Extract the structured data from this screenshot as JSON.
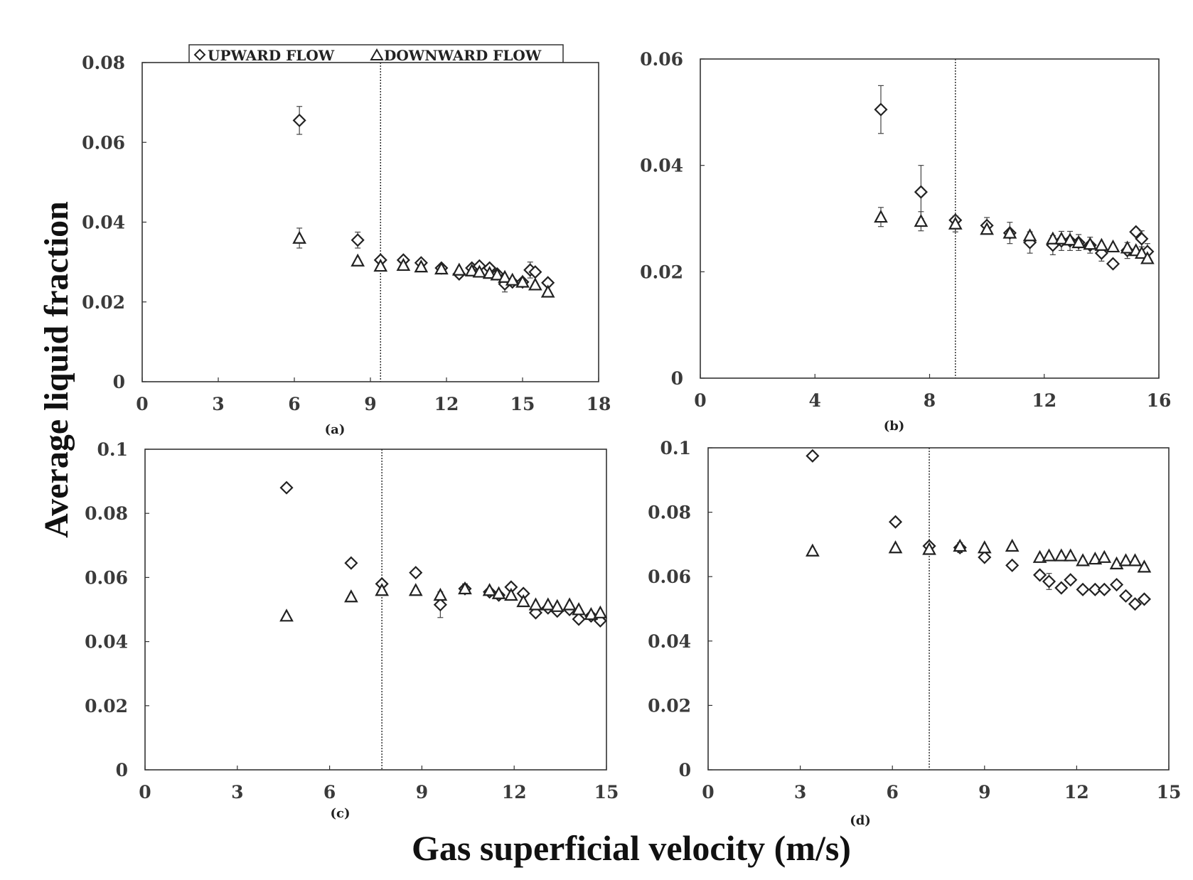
{
  "figure": {
    "ylabel": "Average liquid fraction",
    "xlabel": "Gas superficial velocity (m/s)",
    "colors": {
      "marker": "#222222",
      "axis": "#333333",
      "text": "#3a3a3a"
    }
  },
  "legend": {
    "upward_label": "UPWARD FLOW",
    "downward_label": "DOWNWARD FLOW"
  },
  "chart_data": [
    {
      "type": "scatter",
      "panel": "(a)",
      "xlim": [
        0,
        18
      ],
      "ylim": [
        0,
        0.08
      ],
      "xticks": [
        "0",
        "3",
        "6",
        "9",
        "12",
        "15",
        "18"
      ],
      "xtick_values": [
        0,
        3,
        6,
        9,
        12,
        15,
        18
      ],
      "yticks": [
        "0",
        "0.02",
        "0.04",
        "0.06",
        "0.08"
      ],
      "ytick_values": [
        0,
        0.02,
        0.04,
        0.06,
        0.08
      ],
      "vline": 9.4,
      "series": [
        {
          "name": "UPWARD FLOW",
          "marker": "diamond",
          "x": [
            6.2,
            8.5,
            9.4,
            10.3,
            11.0,
            11.8,
            12.5,
            13.0,
            13.3,
            13.7,
            14.0,
            14.3,
            14.6,
            15.0,
            15.3,
            15.5,
            16.0
          ],
          "y": [
            0.0655,
            0.0355,
            0.0305,
            0.0305,
            0.0298,
            0.0285,
            0.027,
            0.0285,
            0.029,
            0.0285,
            0.027,
            0.0245,
            0.025,
            0.025,
            0.028,
            0.0275,
            0.0248
          ],
          "err": [
            0.0035,
            0.002,
            0,
            0,
            0,
            0,
            0,
            0,
            0,
            0,
            0,
            0.002,
            0,
            0,
            0.002,
            0,
            0
          ]
        },
        {
          "name": "DOWNWARD FLOW",
          "marker": "triangle",
          "x": [
            6.2,
            8.5,
            9.4,
            10.3,
            11.0,
            11.8,
            12.5,
            13.0,
            13.3,
            13.7,
            14.0,
            14.3,
            14.6,
            15.0,
            15.5,
            16.0
          ],
          "y": [
            0.036,
            0.0303,
            0.029,
            0.0292,
            0.0288,
            0.0283,
            0.028,
            0.0278,
            0.0275,
            0.0272,
            0.0268,
            0.0262,
            0.0255,
            0.025,
            0.0243,
            0.0225
          ],
          "err": [
            0.0025,
            0,
            0,
            0,
            0,
            0,
            0,
            0,
            0,
            0,
            0,
            0,
            0,
            0,
            0,
            0
          ]
        }
      ]
    },
    {
      "type": "scatter",
      "panel": "(b)",
      "xlim": [
        0,
        16
      ],
      "ylim": [
        0,
        0.06
      ],
      "xticks": [
        "0",
        "4",
        "8",
        "12",
        "16"
      ],
      "xtick_values": [
        0,
        4,
        8,
        12,
        16
      ],
      "yticks": [
        "0",
        "0.02",
        "0.04",
        "0.06"
      ],
      "ytick_values": [
        0,
        0.02,
        0.04,
        0.06
      ],
      "vline": 8.9,
      "series": [
        {
          "name": "UPWARD FLOW",
          "marker": "diamond",
          "x": [
            6.3,
            7.7,
            8.9,
            10.0,
            10.8,
            11.5,
            12.3,
            12.6,
            12.9,
            13.2,
            13.6,
            14.0,
            14.4,
            14.9,
            15.2,
            15.4,
            15.6
          ],
          "y": [
            0.0505,
            0.035,
            0.0297,
            0.0287,
            0.0273,
            0.0255,
            0.025,
            0.0258,
            0.0258,
            0.0255,
            0.025,
            0.0235,
            0.0215,
            0.024,
            0.0275,
            0.0262,
            0.0238
          ],
          "err": [
            0.0045,
            0.005,
            0,
            0.0015,
            0.002,
            0.002,
            0.0018,
            0.0018,
            0.0018,
            0.0015,
            0.0015,
            0.0015,
            0,
            0.0015,
            0,
            0.0015,
            0.0015
          ]
        },
        {
          "name": "DOWNWARD FLOW",
          "marker": "triangle",
          "x": [
            6.3,
            7.7,
            8.9,
            10.0,
            10.8,
            11.5,
            12.3,
            12.6,
            12.9,
            13.2,
            13.6,
            14.0,
            14.4,
            14.9,
            15.2,
            15.4,
            15.6
          ],
          "y": [
            0.0303,
            0.0295,
            0.029,
            0.028,
            0.0273,
            0.0268,
            0.0262,
            0.0262,
            0.026,
            0.0255,
            0.0252,
            0.025,
            0.0247,
            0.0245,
            0.024,
            0.0235,
            0.0225
          ],
          "err": [
            0.0018,
            0.0018,
            0.0015,
            0,
            0,
            0,
            0,
            0,
            0,
            0,
            0,
            0,
            0,
            0,
            0,
            0,
            0
          ]
        }
      ]
    },
    {
      "type": "scatter",
      "panel": "(c)",
      "xlim": [
        0,
        15
      ],
      "ylim": [
        0,
        0.1
      ],
      "xticks": [
        "0",
        "3",
        "6",
        "9",
        "12",
        "15"
      ],
      "xtick_values": [
        0,
        3,
        6,
        9,
        12,
        15
      ],
      "yticks": [
        "0",
        "0.02",
        "0.04",
        "0.06",
        "0.08",
        "0.1"
      ],
      "ytick_values": [
        0,
        0.02,
        0.04,
        0.06,
        0.08,
        0.1
      ],
      "vline": 7.7,
      "series": [
        {
          "name": "UPWARD FLOW",
          "marker": "diamond",
          "x": [
            4.6,
            6.7,
            7.7,
            8.8,
            9.6,
            10.4,
            11.2,
            11.5,
            11.9,
            12.3,
            12.7,
            13.1,
            13.4,
            13.8,
            14.1,
            14.5,
            14.8
          ],
          "y": [
            0.088,
            0.0645,
            0.058,
            0.0615,
            0.0515,
            0.0565,
            0.0555,
            0.0545,
            0.057,
            0.055,
            0.049,
            0.0505,
            0.0495,
            0.05,
            0.047,
            0.048,
            0.0465
          ],
          "err": [
            0,
            0,
            0,
            0,
            0.004,
            0.0015,
            0,
            0,
            0,
            0,
            0,
            0,
            0,
            0,
            0,
            0,
            0
          ]
        },
        {
          "name": "DOWNWARD FLOW",
          "marker": "triangle",
          "x": [
            4.6,
            6.7,
            7.7,
            8.8,
            9.6,
            10.4,
            11.2,
            11.5,
            11.9,
            12.3,
            12.7,
            13.1,
            13.4,
            13.8,
            14.1,
            14.5,
            14.8
          ],
          "y": [
            0.048,
            0.054,
            0.056,
            0.056,
            0.0545,
            0.0565,
            0.056,
            0.055,
            0.0545,
            0.0525,
            0.0515,
            0.0515,
            0.051,
            0.0515,
            0.05,
            0.0485,
            0.049
          ],
          "err": [
            0,
            0,
            0,
            0,
            0,
            0,
            0,
            0,
            0,
            0,
            0,
            0,
            0,
            0,
            0,
            0,
            0
          ]
        }
      ]
    },
    {
      "type": "scatter",
      "panel": "(d)",
      "xlim": [
        0,
        15
      ],
      "ylim": [
        0,
        0.1
      ],
      "xticks": [
        "0",
        "3",
        "6",
        "9",
        "12",
        "15"
      ],
      "xtick_values": [
        0,
        3,
        6,
        9,
        12,
        15
      ],
      "yticks": [
        "0",
        "0.02",
        "0.04",
        "0.06",
        "0.08",
        "0.1"
      ],
      "ytick_values": [
        0,
        0.02,
        0.04,
        0.06,
        0.08,
        0.1
      ],
      "vline": 7.2,
      "series": [
        {
          "name": "UPWARD FLOW",
          "marker": "diamond",
          "x": [
            3.4,
            6.1,
            7.2,
            8.2,
            9.0,
            9.9,
            10.8,
            11.1,
            11.5,
            11.8,
            12.2,
            12.6,
            12.9,
            13.3,
            13.6,
            13.9,
            14.2
          ],
          "y": [
            0.0975,
            0.077,
            0.0695,
            0.069,
            0.066,
            0.0635,
            0.0605,
            0.0585,
            0.0565,
            0.059,
            0.056,
            0.056,
            0.056,
            0.0575,
            0.054,
            0.0515,
            0.053
          ],
          "err": [
            0,
            0,
            0,
            0.0015,
            0,
            0,
            0,
            0.0025,
            0,
            0,
            0,
            0,
            0,
            0,
            0,
            0,
            0
          ]
        },
        {
          "name": "DOWNWARD FLOW",
          "marker": "triangle",
          "x": [
            3.4,
            6.1,
            7.2,
            8.2,
            9.0,
            9.9,
            10.8,
            11.1,
            11.5,
            11.8,
            12.2,
            12.6,
            12.9,
            13.3,
            13.6,
            13.9,
            14.2
          ],
          "y": [
            0.068,
            0.069,
            0.0685,
            0.0695,
            0.069,
            0.0695,
            0.066,
            0.0665,
            0.0665,
            0.0665,
            0.065,
            0.0655,
            0.066,
            0.064,
            0.065,
            0.065,
            0.063
          ],
          "err": [
            0,
            0,
            0,
            0.001,
            0,
            0,
            0,
            0,
            0,
            0,
            0,
            0,
            0,
            0,
            0,
            0,
            0
          ]
        }
      ]
    }
  ]
}
